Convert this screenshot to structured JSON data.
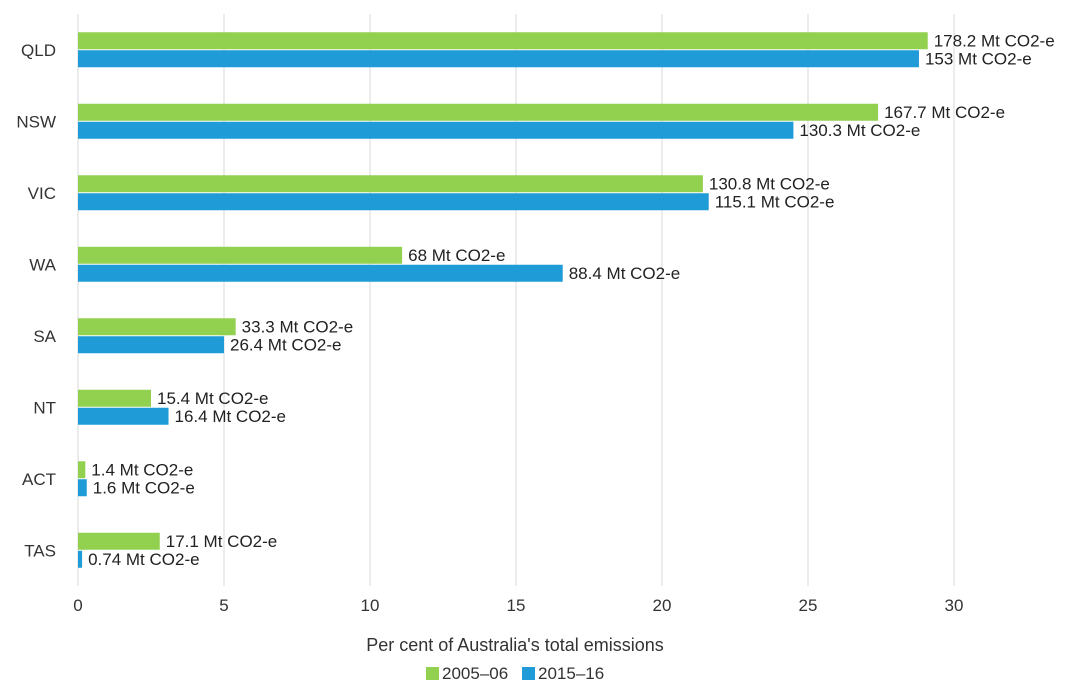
{
  "chart_data": {
    "type": "bar",
    "orientation": "horizontal",
    "categories": [
      "QLD",
      "NSW",
      "VIC",
      "WA",
      "SA",
      "NT",
      "ACT",
      "TAS"
    ],
    "series": [
      {
        "name": "2005–06",
        "color": "#92d050",
        "values": [
          29.1,
          27.4,
          21.4,
          11.1,
          5.4,
          2.5,
          0.25,
          2.8
        ],
        "labels": [
          "178.2 Mt CO2-e",
          "167.7 Mt CO2-e",
          "130.8 Mt CO2-e",
          "68 Mt CO2-e",
          "33.3 Mt CO2-e",
          "15.4 Mt CO2-e",
          "1.4 Mt CO2-e",
          "17.1 Mt CO2-e"
        ]
      },
      {
        "name": "2015–16",
        "color": "#1f9bd7",
        "values": [
          28.8,
          24.5,
          21.6,
          16.6,
          5.0,
          3.1,
          0.3,
          0.14
        ],
        "labels": [
          "153 Mt CO2-e",
          "130.3 Mt CO2-e",
          "115.1 Mt CO2-e",
          "88.4 Mt CO2-e",
          "26.4 Mt CO2-e",
          "16.4 Mt CO2-e",
          "1.6 Mt CO2-e",
          "0.74 Mt CO2-e"
        ]
      }
    ],
    "xlabel": "Per cent of Australia's total emissions",
    "xlim": [
      0,
      35
    ],
    "xticks": [
      "0",
      "5",
      "10",
      "15",
      "20",
      "25",
      "30"
    ],
    "grid": true,
    "legend_position": "bottom"
  }
}
